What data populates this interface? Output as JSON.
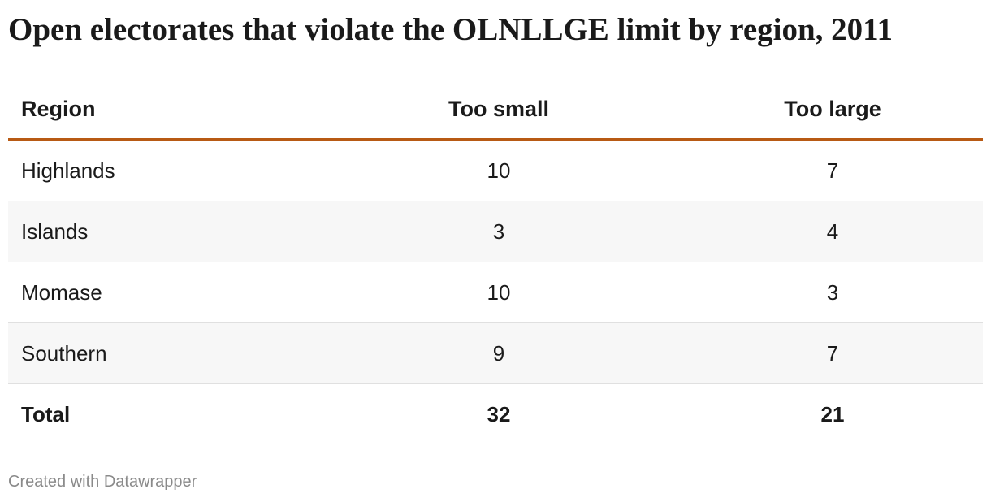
{
  "title": "Open electorates that violate the OLNLLGE limit by region, 2011",
  "table": {
    "header": [
      "Region",
      "Too small",
      "Too large"
    ],
    "rows": [
      [
        "Highlands",
        "10",
        "7"
      ],
      [
        "Islands",
        "3",
        "4"
      ],
      [
        "Momase",
        "10",
        "3"
      ],
      [
        "Southern",
        "9",
        "7"
      ]
    ],
    "total": [
      "Total",
      "32",
      "21"
    ]
  },
  "footer": "Created with Datawrapper"
}
